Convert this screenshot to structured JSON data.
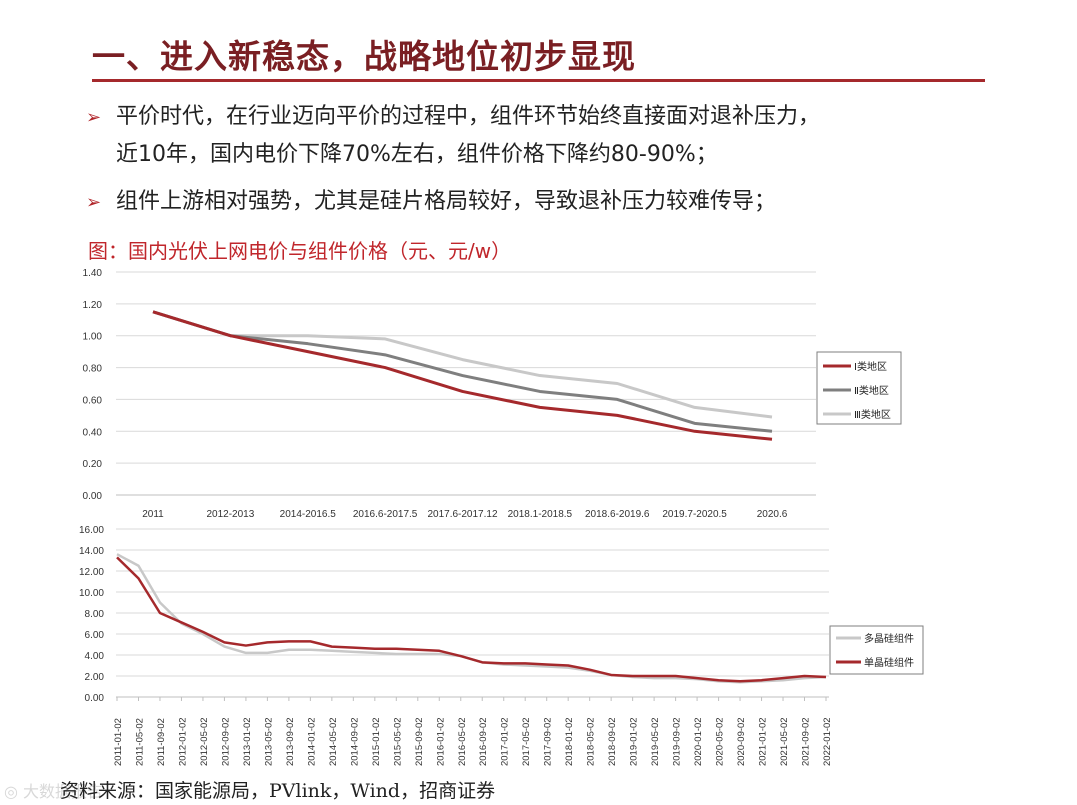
{
  "slide": {
    "title": "一、进入新稳态，战略地位初步显现",
    "bullet1_line1": "平价时代，在行业迈向平价的过程中，组件环节始终直接面对退补压力，",
    "bullet1_line2": "近10年，国内电价下降70%左右，组件价格下降约80-90%；",
    "bullet2": "组件上游相对强势，尤其是硅片格局较好，导致退补压力较难传导；",
    "bullet_marker": "➢",
    "figure_caption": "图：国内光伏上网电价与组件价格（元、元/w）",
    "source": "资料来源：国家能源局，PVlink，Wind，招商证券",
    "watermark": "◎ 大数据报告"
  },
  "colors": {
    "title": "#7a1f23",
    "rule": "#a5292c",
    "red_series": "#a5292c",
    "dark_gray": "#7f7f7f",
    "light_gray": "#c8c8c8"
  },
  "chart_data": [
    {
      "type": "line",
      "title": "",
      "categories": [
        "2011",
        "2012-2013",
        "2014-2016.5",
        "2016.6-2017.5",
        "2017.6-2017.12",
        "2018.1-2018.5",
        "2018.6-2019.6",
        "2019.7-2020.5",
        "2020.6"
      ],
      "ylim": [
        0,
        1.4
      ],
      "yticks": [
        "0.00",
        "0.20",
        "0.40",
        "0.60",
        "0.80",
        "1.00",
        "1.20",
        "1.40"
      ],
      "grid": true,
      "legend": "right",
      "series": [
        {
          "name": "Ⅰ类地区",
          "color": "#a5292c",
          "values": [
            1.15,
            1.0,
            0.9,
            0.8,
            0.65,
            0.55,
            0.5,
            0.4,
            0.35
          ]
        },
        {
          "name": "Ⅱ类地区",
          "color": "#7f7f7f",
          "values": [
            1.15,
            1.0,
            0.95,
            0.88,
            0.75,
            0.65,
            0.6,
            0.45,
            0.4
          ]
        },
        {
          "name": "Ⅲ类地区",
          "color": "#c8c8c8",
          "values": [
            1.15,
            1.0,
            1.0,
            0.98,
            0.85,
            0.75,
            0.7,
            0.55,
            0.49
          ]
        }
      ]
    },
    {
      "type": "line",
      "title": "",
      "x": [
        "2011-01-02",
        "2011-05-02",
        "2011-09-02",
        "2012-01-02",
        "2012-05-02",
        "2012-09-02",
        "2013-01-02",
        "2013-05-02",
        "2013-09-02",
        "2014-01-02",
        "2014-05-02",
        "2014-09-02",
        "2015-01-02",
        "2015-05-02",
        "2015-09-02",
        "2016-01-02",
        "2016-05-02",
        "2016-09-02",
        "2017-01-02",
        "2017-05-02",
        "2017-09-02",
        "2018-01-02",
        "2018-05-02",
        "2018-09-02",
        "2019-01-02",
        "2019-05-02",
        "2019-09-02",
        "2020-01-02",
        "2020-05-02",
        "2020-09-02",
        "2021-01-02",
        "2021-05-02",
        "2021-09-02",
        "2022-01-02"
      ],
      "ylim": [
        0,
        16
      ],
      "yticks": [
        "0.00",
        "2.00",
        "4.00",
        "6.00",
        "8.00",
        "10.00",
        "12.00",
        "14.00",
        "16.00"
      ],
      "grid": true,
      "legend": "right",
      "series": [
        {
          "name": "多晶硅组件",
          "color": "#c8c8c8",
          "values": [
            13.6,
            12.5,
            9.0,
            7.0,
            6.0,
            4.8,
            4.2,
            4.2,
            4.5,
            4.5,
            4.4,
            4.3,
            4.2,
            4.1,
            4.1,
            4.1,
            3.9,
            3.3,
            3.1,
            3.0,
            2.9,
            2.8,
            2.5,
            2.1,
            1.9,
            1.8,
            1.8,
            1.7,
            1.5,
            1.4,
            1.5,
            1.6,
            1.8,
            1.9
          ]
        },
        {
          "name": "单晶硅组件",
          "color": "#a5292c",
          "values": [
            13.3,
            11.3,
            8.0,
            7.1,
            6.2,
            5.2,
            4.9,
            5.2,
            5.3,
            5.3,
            4.8,
            4.7,
            4.6,
            4.6,
            4.5,
            4.4,
            3.9,
            3.3,
            3.2,
            3.2,
            3.1,
            3.0,
            2.6,
            2.1,
            2.0,
            2.0,
            2.0,
            1.8,
            1.6,
            1.5,
            1.6,
            1.8,
            2.0,
            1.9
          ]
        }
      ]
    }
  ]
}
